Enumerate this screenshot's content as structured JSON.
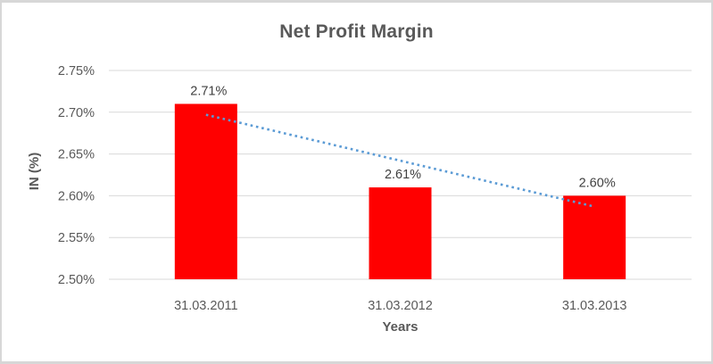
{
  "chart_data": {
    "type": "bar",
    "title": "Net Profit Margin",
    "xlabel": "Years",
    "ylabel": "IN (%)",
    "categories": [
      "31.03.2011",
      "31.03.2012",
      "31.03.2013"
    ],
    "values": [
      2.71,
      2.61,
      2.6
    ],
    "data_labels": [
      "2.71%",
      "2.61%",
      "2.60%"
    ],
    "ylim": [
      2.5,
      2.75
    ],
    "y_ticks": [
      2.75,
      2.7,
      2.65,
      2.6,
      2.55,
      2.5
    ],
    "y_tick_labels": [
      "2.75%",
      "2.70%",
      "2.65%",
      "2.60%",
      "2.55%",
      "2.50%"
    ],
    "grid": true,
    "legend": "none",
    "bar_color": "#FF0000",
    "trendline": {
      "type": "linear",
      "style": "dotted",
      "color": "#5B9BD5",
      "start_value": 2.697,
      "end_value": 2.587
    },
    "colors": {
      "gridline": "#D9D9D9",
      "tick_text": "#595959",
      "category_text": "#595959",
      "data_label_text": "#404040",
      "title_text": "#595959",
      "frame_border": "#D7D7D7",
      "background": "#FFFFFF"
    }
  }
}
